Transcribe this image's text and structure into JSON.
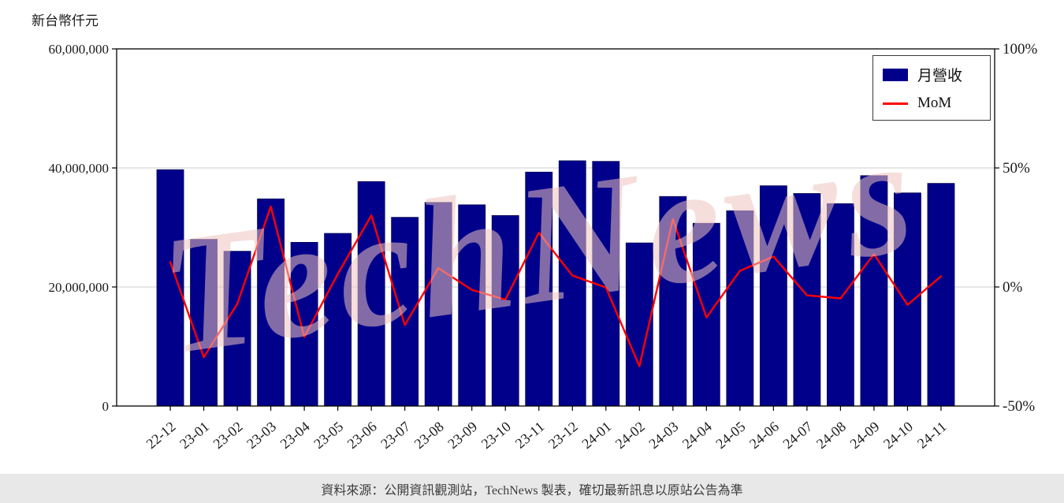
{
  "page": {
    "y_axis_title": "新台幣仟元",
    "watermark": "TechNews",
    "footer": "資料來源：公開資訊觀測站，TechNews 製表，確切最新訊息以原站公告為準"
  },
  "chart_data": {
    "type": "bar",
    "title": "",
    "xlabel": "",
    "ylabel": "新台幣仟元",
    "categories": [
      "22-12",
      "23-01",
      "23-02",
      "23-03",
      "23-04",
      "23-05",
      "23-06",
      "23-07",
      "23-08",
      "23-09",
      "23-10",
      "23-11",
      "23-12",
      "24-01",
      "24-02",
      "24-03",
      "24-04",
      "24-05",
      "24-06",
      "24-07",
      "24-08",
      "24-09",
      "24-10",
      "24-11"
    ],
    "series": [
      {
        "name": "月營收",
        "type": "bar",
        "axis": "left",
        "color": "#00008B",
        "values": [
          39700000,
          28000000,
          26000000,
          34800000,
          27500000,
          29000000,
          37700000,
          31700000,
          34200000,
          33800000,
          32000000,
          39300000,
          41200000,
          41100000,
          27400000,
          35200000,
          30700000,
          32800000,
          37000000,
          35700000,
          34000000,
          38700000,
          35800000,
          37400000
        ]
      },
      {
        "name": "MoM",
        "type": "line",
        "axis": "right",
        "color": "#ff0000",
        "values": [
          10.5,
          -29.5,
          -7.1,
          33.8,
          -21.0,
          5.5,
          30.0,
          -16.0,
          7.9,
          -1.2,
          -5.3,
          22.8,
          4.8,
          -0.2,
          -33.3,
          28.5,
          -12.8,
          6.8,
          12.8,
          -3.5,
          -4.8,
          13.8,
          -7.5,
          4.5
        ]
      }
    ],
    "left_axis": {
      "range": [
        0,
        60000000
      ],
      "ticks": [
        0,
        20000000,
        40000000,
        60000000
      ]
    },
    "right_axis": {
      "range": [
        -50,
        100
      ],
      "ticks": [
        "-50%",
        "0%",
        "50%",
        "100%"
      ]
    },
    "legend": {
      "position": "upper right",
      "entries": [
        "月營收",
        "MoM"
      ]
    },
    "grid": "horizontal"
  }
}
